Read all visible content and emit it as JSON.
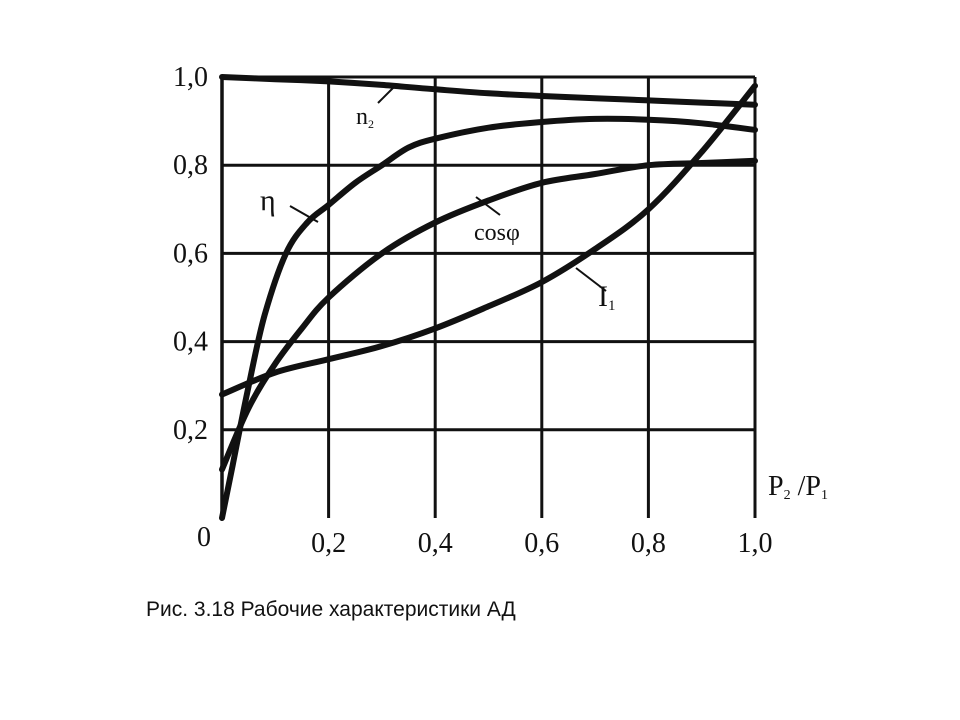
{
  "caption": "Рис. 3.18 Рабочие характеристики АД",
  "chart_data": {
    "type": "line",
    "xlabel_parts": [
      "P",
      "2",
      " /P",
      "1"
    ],
    "xlim": [
      0,
      1.0
    ],
    "ylim": [
      0,
      1.0
    ],
    "xticks": [
      {
        "value": 0.2,
        "label": "0,2"
      },
      {
        "value": 0.4,
        "label": "0,4"
      },
      {
        "value": 0.6,
        "label": "0,6"
      },
      {
        "value": 0.8,
        "label": "0,8"
      },
      {
        "value": 1.0,
        "label": "1,0"
      }
    ],
    "yticks": [
      {
        "value": 0.2,
        "label": "0,2"
      },
      {
        "value": 0.4,
        "label": "0,4"
      },
      {
        "value": 0.6,
        "label": "0,6"
      },
      {
        "value": 0.8,
        "label": "0,8"
      },
      {
        "value": 1.0,
        "label": "1,0"
      }
    ],
    "origin_label": "0",
    "grid": true,
    "series": [
      {
        "name": "n2",
        "label_main": "n",
        "label_sub": "2",
        "x": [
          0,
          0.1,
          0.2,
          0.3,
          0.4,
          0.5,
          0.6,
          0.7,
          0.8,
          0.9,
          1.0
        ],
        "y": [
          1.0,
          0.995,
          0.99,
          0.982,
          0.972,
          0.963,
          0.957,
          0.952,
          0.947,
          0.942,
          0.937
        ]
      },
      {
        "name": "η",
        "label_main": "η",
        "label_sub": "",
        "x": [
          0,
          0.02,
          0.05,
          0.08,
          0.12,
          0.16,
          0.2,
          0.25,
          0.3,
          0.35,
          0.4,
          0.5,
          0.6,
          0.7,
          0.8,
          0.9,
          1.0
        ],
        "y": [
          0.0,
          0.12,
          0.3,
          0.46,
          0.6,
          0.67,
          0.71,
          0.76,
          0.8,
          0.84,
          0.86,
          0.885,
          0.898,
          0.905,
          0.903,
          0.895,
          0.88
        ]
      },
      {
        "name": "cosφ",
        "label_main": "cosφ",
        "label_sub": "",
        "x": [
          0,
          0.05,
          0.1,
          0.15,
          0.2,
          0.3,
          0.4,
          0.5,
          0.6,
          0.7,
          0.8,
          0.9,
          1.0
        ],
        "y": [
          0.11,
          0.25,
          0.35,
          0.43,
          0.5,
          0.6,
          0.67,
          0.72,
          0.76,
          0.78,
          0.8,
          0.805,
          0.81
        ]
      },
      {
        "name": "I1",
        "label_main": "I",
        "label_sub": "1",
        "x": [
          0,
          0.1,
          0.2,
          0.3,
          0.4,
          0.5,
          0.6,
          0.7,
          0.8,
          0.9,
          1.0
        ],
        "y": [
          0.28,
          0.33,
          0.36,
          0.39,
          0.43,
          0.48,
          0.535,
          0.61,
          0.7,
          0.83,
          0.98
        ]
      }
    ]
  }
}
